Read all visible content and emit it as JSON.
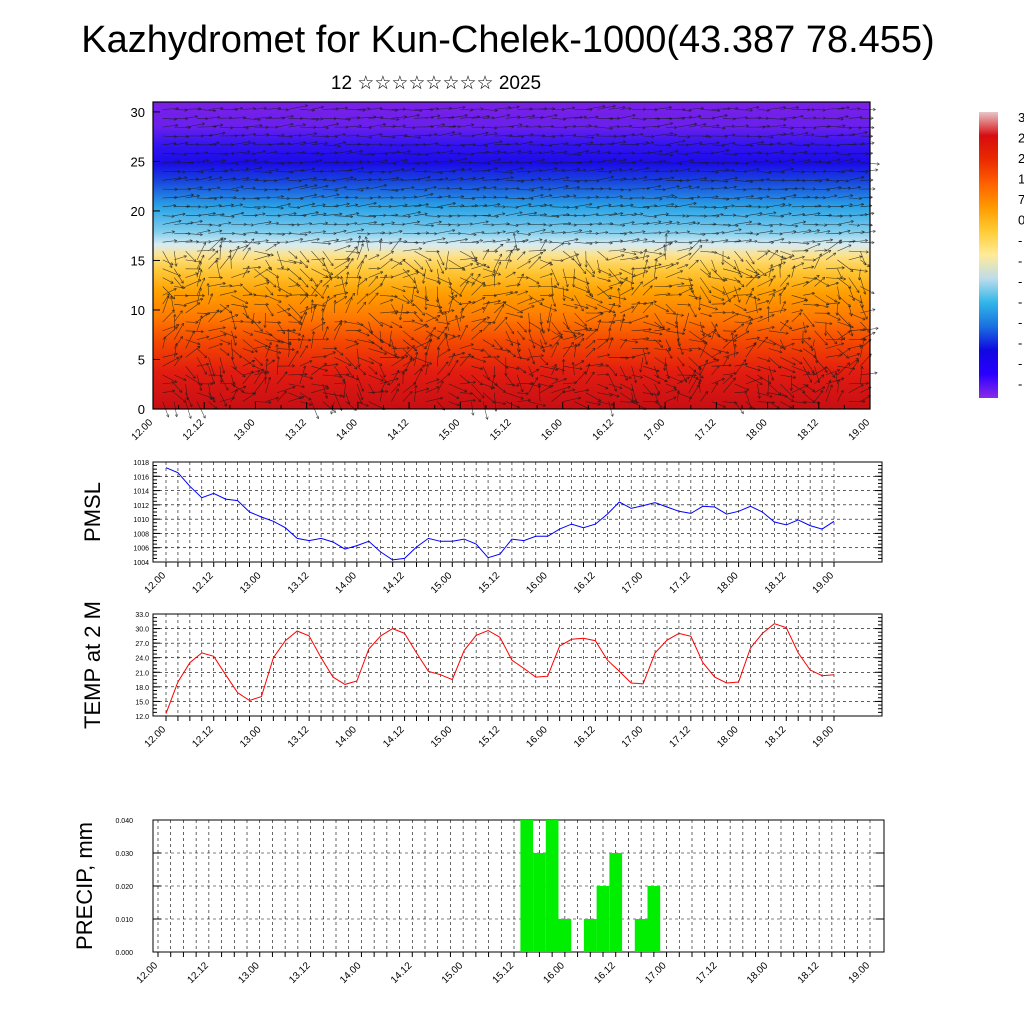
{
  "header": {
    "title": "Kazhydromet for Kun-Chelek-1000(43.387 78.455)",
    "subtitle": "12 ☆☆☆☆☆☆☆☆ 2025"
  },
  "chart_data": [
    {
      "type": "heatmap",
      "title": "",
      "ylim": [
        0,
        31
      ],
      "ytick_labels": [
        "0",
        "5",
        "10",
        "15",
        "20",
        "25",
        "30"
      ],
      "ytick_values": [
        0,
        5,
        10,
        15,
        20,
        25,
        30
      ],
      "xtick_labels": [
        "12.00",
        "12.12",
        "13.00",
        "13.12",
        "14.00",
        "14.12",
        "15.00",
        "15.12",
        "16.00",
        "16.12",
        "17.00",
        "17.12",
        "18.00",
        "18.12",
        "19.00"
      ],
      "colorbar": {
        "colors": [
          "#e8c6c8",
          "#d70c10",
          "#ea2a00",
          "#ff6000",
          "#ff9a00",
          "#ffcc33",
          "#ffeb99",
          "#bcdcec",
          "#30b6e8",
          "#1a70e0",
          "#1008e0",
          "#2a00ff",
          "#8a2ae8"
        ],
        "visible_labels": [
          "3",
          "2",
          "2",
          "1",
          "7",
          "0",
          "-",
          "-",
          "-",
          "-",
          "-",
          "-",
          "-",
          "-"
        ]
      },
      "vectors": "wind arrows overlay"
    },
    {
      "type": "line",
      "ylabel": "PMSL",
      "ylim": [
        1004,
        1018
      ],
      "ytick_labels": [
        "1004",
        "1006",
        "1008",
        "1010",
        "1012",
        "1014",
        "1016",
        "1018"
      ],
      "xtick_labels": [
        "12.00",
        "12.12",
        "13.00",
        "13.12",
        "14.00",
        "14.12",
        "15.00",
        "15.12",
        "16.00",
        "16.12",
        "17.00",
        "17.12",
        "18.00",
        "18.12",
        "19.00"
      ],
      "series": [
        {
          "color": "#0000ff",
          "values": [
            1017.2,
            1016.5,
            1014.6,
            1013.0,
            1013.6,
            1012.8,
            1012.6,
            1011.0,
            1010.3,
            1009.7,
            1008.8,
            1007.3,
            1007.0,
            1007.3,
            1006.8,
            1005.8,
            1006.3,
            1006.9,
            1005.4,
            1004.3,
            1004.5,
            1006.1,
            1007.3,
            1006.9,
            1006.9,
            1007.2,
            1006.5,
            1004.6,
            1005.1,
            1007.2,
            1007.0,
            1007.6,
            1007.6,
            1008.6,
            1009.3,
            1008.8,
            1009.3,
            1010.7,
            1012.4,
            1011.5,
            1011.9,
            1012.3,
            1011.7,
            1011.1,
            1010.8,
            1011.8,
            1011.7,
            1010.7,
            1011.1,
            1011.8,
            1011.0,
            1009.6,
            1009.2,
            1009.9,
            1009.1,
            1008.6,
            1009.7
          ]
        }
      ]
    },
    {
      "type": "line",
      "ylabel": "TEMP at 2 M",
      "ylim": [
        12,
        33
      ],
      "ytick_labels": [
        "12.0",
        "15.0",
        "18.0",
        "21.0",
        "24.0",
        "27.0",
        "30.0",
        "33.0"
      ],
      "xtick_labels": [
        "12.00",
        "12.12",
        "13.00",
        "13.12",
        "14.00",
        "14.12",
        "15.00",
        "15.12",
        "16.00",
        "16.12",
        "17.00",
        "17.12",
        "18.00",
        "18.12",
        "19.00"
      ],
      "series": [
        {
          "color": "#ff0000",
          "values": [
            12.5,
            19.0,
            23.0,
            25.0,
            24.3,
            20.5,
            16.8,
            15.2,
            16.0,
            24.0,
            27.5,
            29.5,
            28.5,
            24.0,
            20.0,
            18.5,
            19.2,
            25.8,
            28.5,
            30.0,
            29.0,
            25.0,
            21.2,
            20.5,
            19.5,
            25.5,
            28.6,
            29.6,
            28.2,
            23.5,
            21.8,
            20.0,
            20.2,
            26.4,
            27.8,
            28.0,
            27.5,
            23.5,
            21.2,
            18.8,
            18.6,
            25.0,
            27.6,
            29.0,
            28.4,
            23.0,
            20.0,
            18.8,
            19.0,
            26.0,
            29.0,
            31.0,
            30.2,
            25.0,
            21.5,
            20.3,
            20.5
          ]
        }
      ]
    },
    {
      "type": "bar",
      "ylabel": "PRECIP, mm",
      "ylim": [
        0,
        0.04
      ],
      "ytick_labels": [
        "0.000",
        "0.010",
        "0.020",
        "0.030",
        "0.040"
      ],
      "xtick_labels": [
        "12.00",
        "12.12",
        "13.00",
        "13.12",
        "14.00",
        "14.12",
        "15.00",
        "15.12",
        "16.00",
        "16.12",
        "17.00",
        "17.12",
        "18.00",
        "18.12",
        "19.00"
      ],
      "color": "#00ee00",
      "x_steps": [
        29,
        30,
        31,
        32,
        34,
        35,
        36,
        38,
        39
      ],
      "values": [
        0.04,
        0.03,
        0.04,
        0.01,
        0.01,
        0.02,
        0.03,
        0.01,
        0.02
      ]
    }
  ]
}
